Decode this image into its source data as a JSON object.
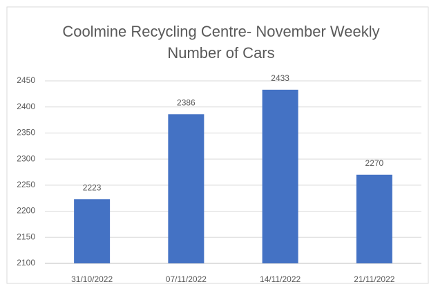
{
  "chart_data": {
    "type": "bar",
    "title": "Coolmine Recycling Centre- November Weekly Number of Cars",
    "categories": [
      "31/10/2022",
      "07/11/2022",
      "14/11/2022",
      "21/11/2022"
    ],
    "values": [
      2223,
      2386,
      2433,
      2270
    ],
    "color": "#4472c4",
    "ylim": [
      2100,
      2450
    ],
    "yticks": [
      2100,
      2150,
      2200,
      2250,
      2300,
      2350,
      2400,
      2450
    ],
    "grid": true
  }
}
